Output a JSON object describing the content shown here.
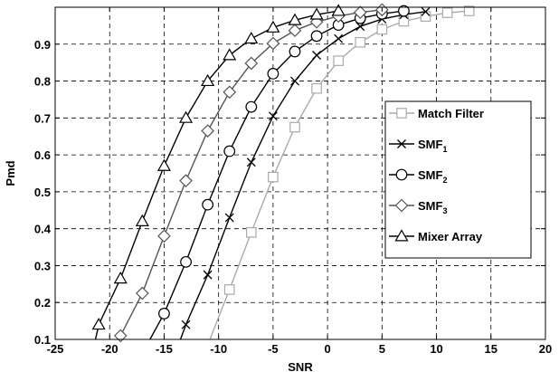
{
  "chart_data": {
    "type": "line",
    "title": "",
    "xlabel": "SNR",
    "ylabel": "Pmd",
    "xlim": [
      -25,
      20
    ],
    "ylim": [
      0.1,
      1.0
    ],
    "xticks": [
      -25,
      -20,
      -15,
      -10,
      -5,
      0,
      5,
      10,
      15,
      20
    ],
    "yticks": [
      0.1,
      0.2,
      0.3,
      0.4,
      0.5,
      0.6,
      0.7,
      0.8,
      0.9
    ],
    "xtick_labels": [
      "-25",
      "-20",
      "-15",
      "-10",
      "-5",
      "0",
      "5",
      "10",
      "15",
      "20"
    ],
    "ytick_labels": [
      "0.1",
      "0.2",
      "0.3",
      "0.4",
      "0.5",
      "0.6",
      "0.7",
      "0.8",
      "0.9"
    ],
    "grid": true,
    "legend_position": "right",
    "series": [
      {
        "name": "Match Filter",
        "legend_main": "Match Filter",
        "legend_sub": "",
        "marker": "square",
        "color": "#aaaaaa",
        "x": [
          -10.8,
          -9,
          -7,
          -5,
          -3,
          -1,
          1,
          3,
          5,
          7,
          9,
          11,
          13
        ],
        "y": [
          0.1,
          0.235,
          0.39,
          0.54,
          0.675,
          0.78,
          0.855,
          0.905,
          0.94,
          0.962,
          0.975,
          0.985,
          0.99
        ]
      },
      {
        "name": "SMF1",
        "legend_main": "SMF",
        "legend_sub": "1",
        "marker": "x",
        "color": "#000000",
        "x": [
          -13.5,
          -13,
          -11,
          -9,
          -7,
          -5,
          -3,
          -1,
          1,
          3,
          5,
          7,
          9
        ],
        "y": [
          0.1,
          0.14,
          0.275,
          0.43,
          0.58,
          0.705,
          0.8,
          0.87,
          0.915,
          0.948,
          0.968,
          0.98,
          0.988
        ]
      },
      {
        "name": "SMF2",
        "legend_main": "SMF",
        "legend_sub": "2",
        "marker": "circle",
        "color": "#000000",
        "x": [
          -16.3,
          -15,
          -13,
          -11,
          -9,
          -7,
          -5,
          -3,
          -1,
          1,
          3,
          5,
          7
        ],
        "y": [
          0.1,
          0.17,
          0.31,
          0.465,
          0.61,
          0.73,
          0.82,
          0.88,
          0.922,
          0.952,
          0.97,
          0.982,
          0.99
        ]
      },
      {
        "name": "SMF3",
        "legend_main": "SMF",
        "legend_sub": "3",
        "marker": "diamond",
        "color": "#555555",
        "x": [
          -19.2,
          -19,
          -17,
          -15,
          -13,
          -11,
          -9,
          -7,
          -5,
          -3,
          -1,
          1,
          3,
          5
        ],
        "y": [
          0.1,
          0.11,
          0.225,
          0.38,
          0.53,
          0.665,
          0.77,
          0.848,
          0.902,
          0.937,
          0.96,
          0.976,
          0.986,
          0.993
        ]
      },
      {
        "name": "Mixer Array",
        "legend_main": "Mixer Array",
        "legend_sub": "",
        "marker": "triangle",
        "color": "#000000",
        "x": [
          -21.3,
          -21,
          -19,
          -17,
          -15,
          -13,
          -11,
          -9,
          -7,
          -5,
          -3,
          -1,
          1
        ],
        "y": [
          0.1,
          0.14,
          0.265,
          0.42,
          0.57,
          0.7,
          0.8,
          0.87,
          0.915,
          0.945,
          0.965,
          0.98,
          0.99
        ]
      }
    ]
  }
}
